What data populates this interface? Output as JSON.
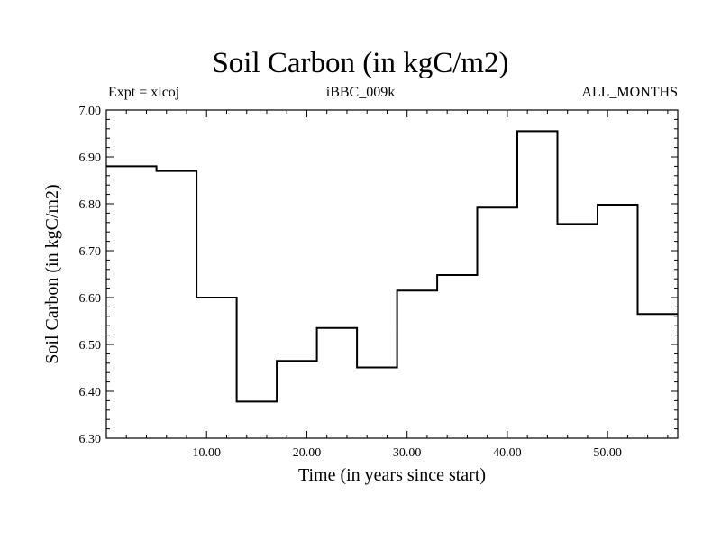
{
  "header": {
    "title": "Soil Carbon (in kgC/m2)",
    "left_label": "Expt = xlcoj",
    "center_label": "iBBC_009k",
    "right_label": "ALL_MONTHS"
  },
  "chart_data": {
    "type": "line",
    "step": true,
    "title": "Soil Carbon (in kgC/m2)",
    "xlabel": "Time (in years since start)",
    "ylabel": "Soil Carbon (in kgC/m2)",
    "xlim": [
      0,
      57
    ],
    "ylim": [
      6.3,
      7.0
    ],
    "xticks": [
      "10.00",
      "20.00",
      "30.00",
      "40.00",
      "50.00"
    ],
    "yticks": [
      "6.30",
      "6.40",
      "6.50",
      "6.60",
      "6.70",
      "6.80",
      "6.90",
      "7.00"
    ],
    "grid": false,
    "series": [
      {
        "x": [
          0,
          5,
          9,
          13,
          17,
          21,
          25,
          29,
          33,
          37,
          41,
          45,
          49,
          53
        ],
        "y": [
          6.88,
          6.87,
          6.6,
          6.378,
          6.465,
          6.535,
          6.451,
          6.615,
          6.648,
          6.792,
          6.955,
          6.757,
          6.798,
          6.565
        ]
      }
    ]
  }
}
